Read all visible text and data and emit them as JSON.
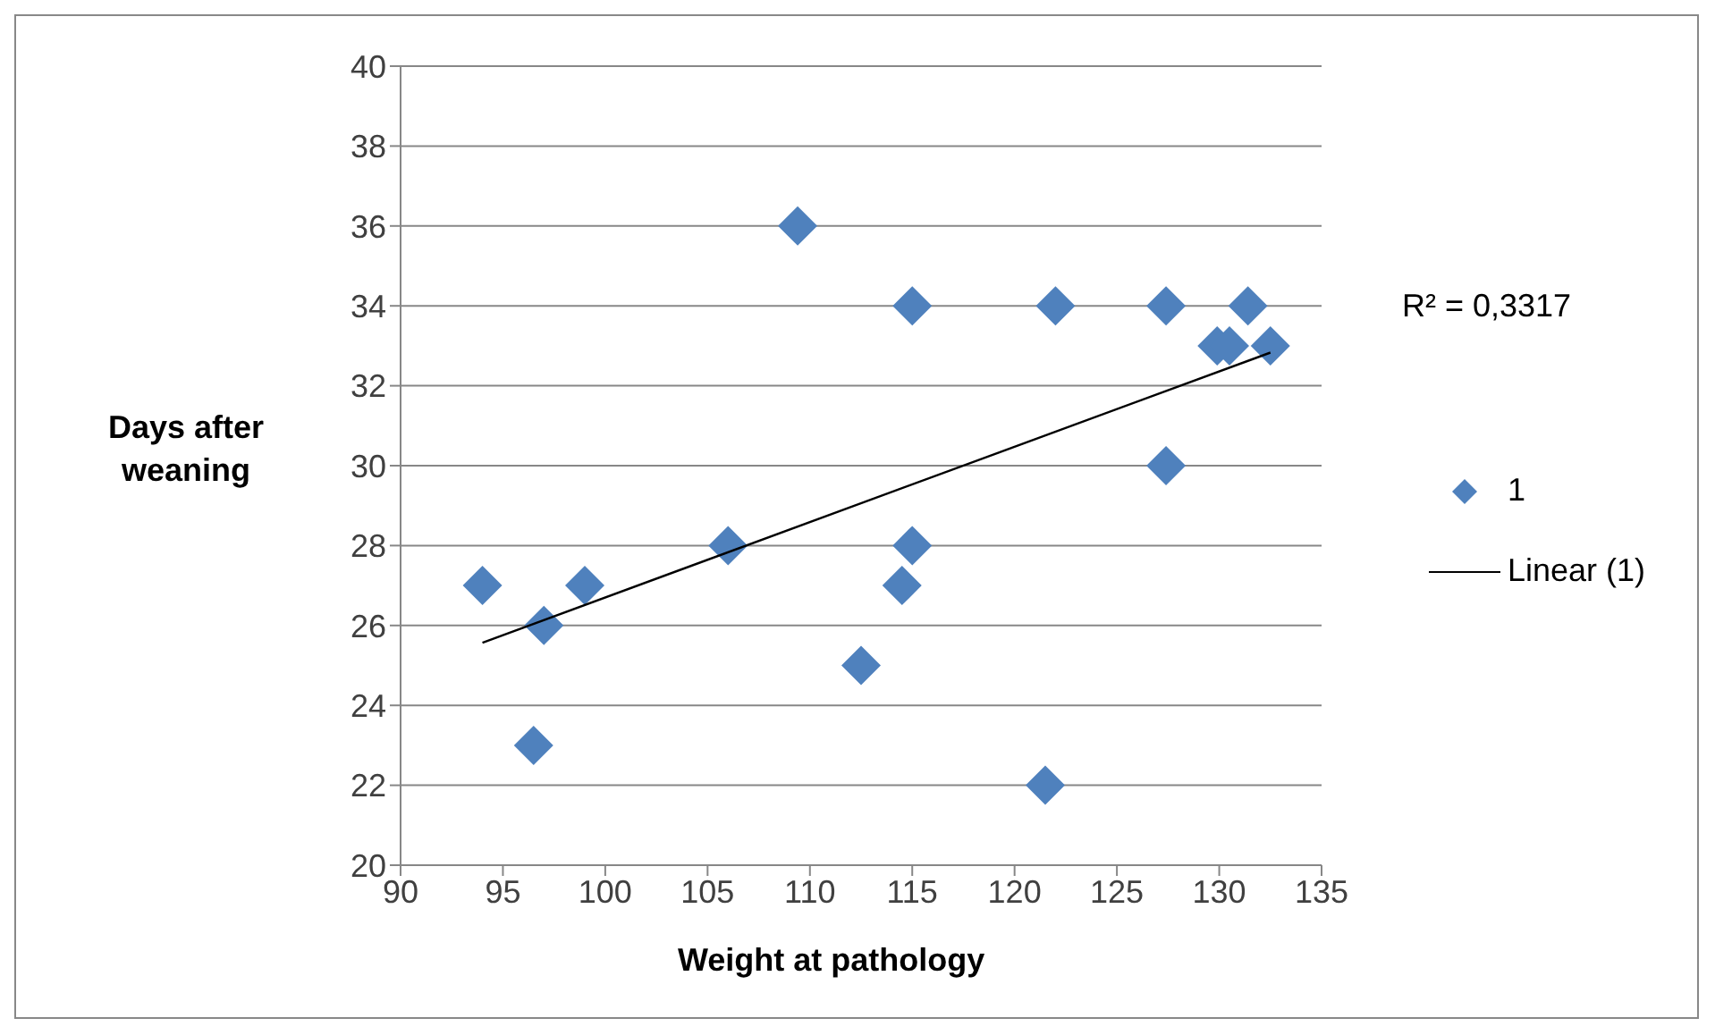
{
  "chart_data": {
    "type": "scatter",
    "xlabel": "Weight at pathology",
    "ylabel": "Days after weaning",
    "xlim": [
      90,
      135
    ],
    "xticks": [
      90,
      95,
      100,
      105,
      110,
      115,
      120,
      125,
      130,
      135
    ],
    "ylim": [
      20,
      40
    ],
    "yticks": [
      20,
      22,
      24,
      26,
      28,
      30,
      32,
      34,
      36,
      38,
      40
    ],
    "grid": "y",
    "legend": "right",
    "annotations": [
      "R² = 0,3317"
    ],
    "series": [
      {
        "name": "1",
        "marker": "diamond",
        "color": "#4f81bd",
        "x": [
          94,
          97,
          96.5,
          99,
          106,
          109.4,
          112.5,
          115,
          114.5,
          115,
          122,
          121.5,
          127.4,
          127.4,
          129.9,
          130.5,
          131.4,
          132.5
        ],
        "values": [
          27,
          26,
          23,
          27,
          28,
          36,
          25,
          34,
          27,
          28,
          34,
          22,
          34,
          30,
          33,
          33,
          34,
          33
        ]
      },
      {
        "name": "Linear (1)",
        "type": "line",
        "color": "#000000",
        "line_style": "solid",
        "x": [
          94,
          132.5
        ],
        "values": [
          25.57,
          32.83
        ]
      }
    ]
  }
}
